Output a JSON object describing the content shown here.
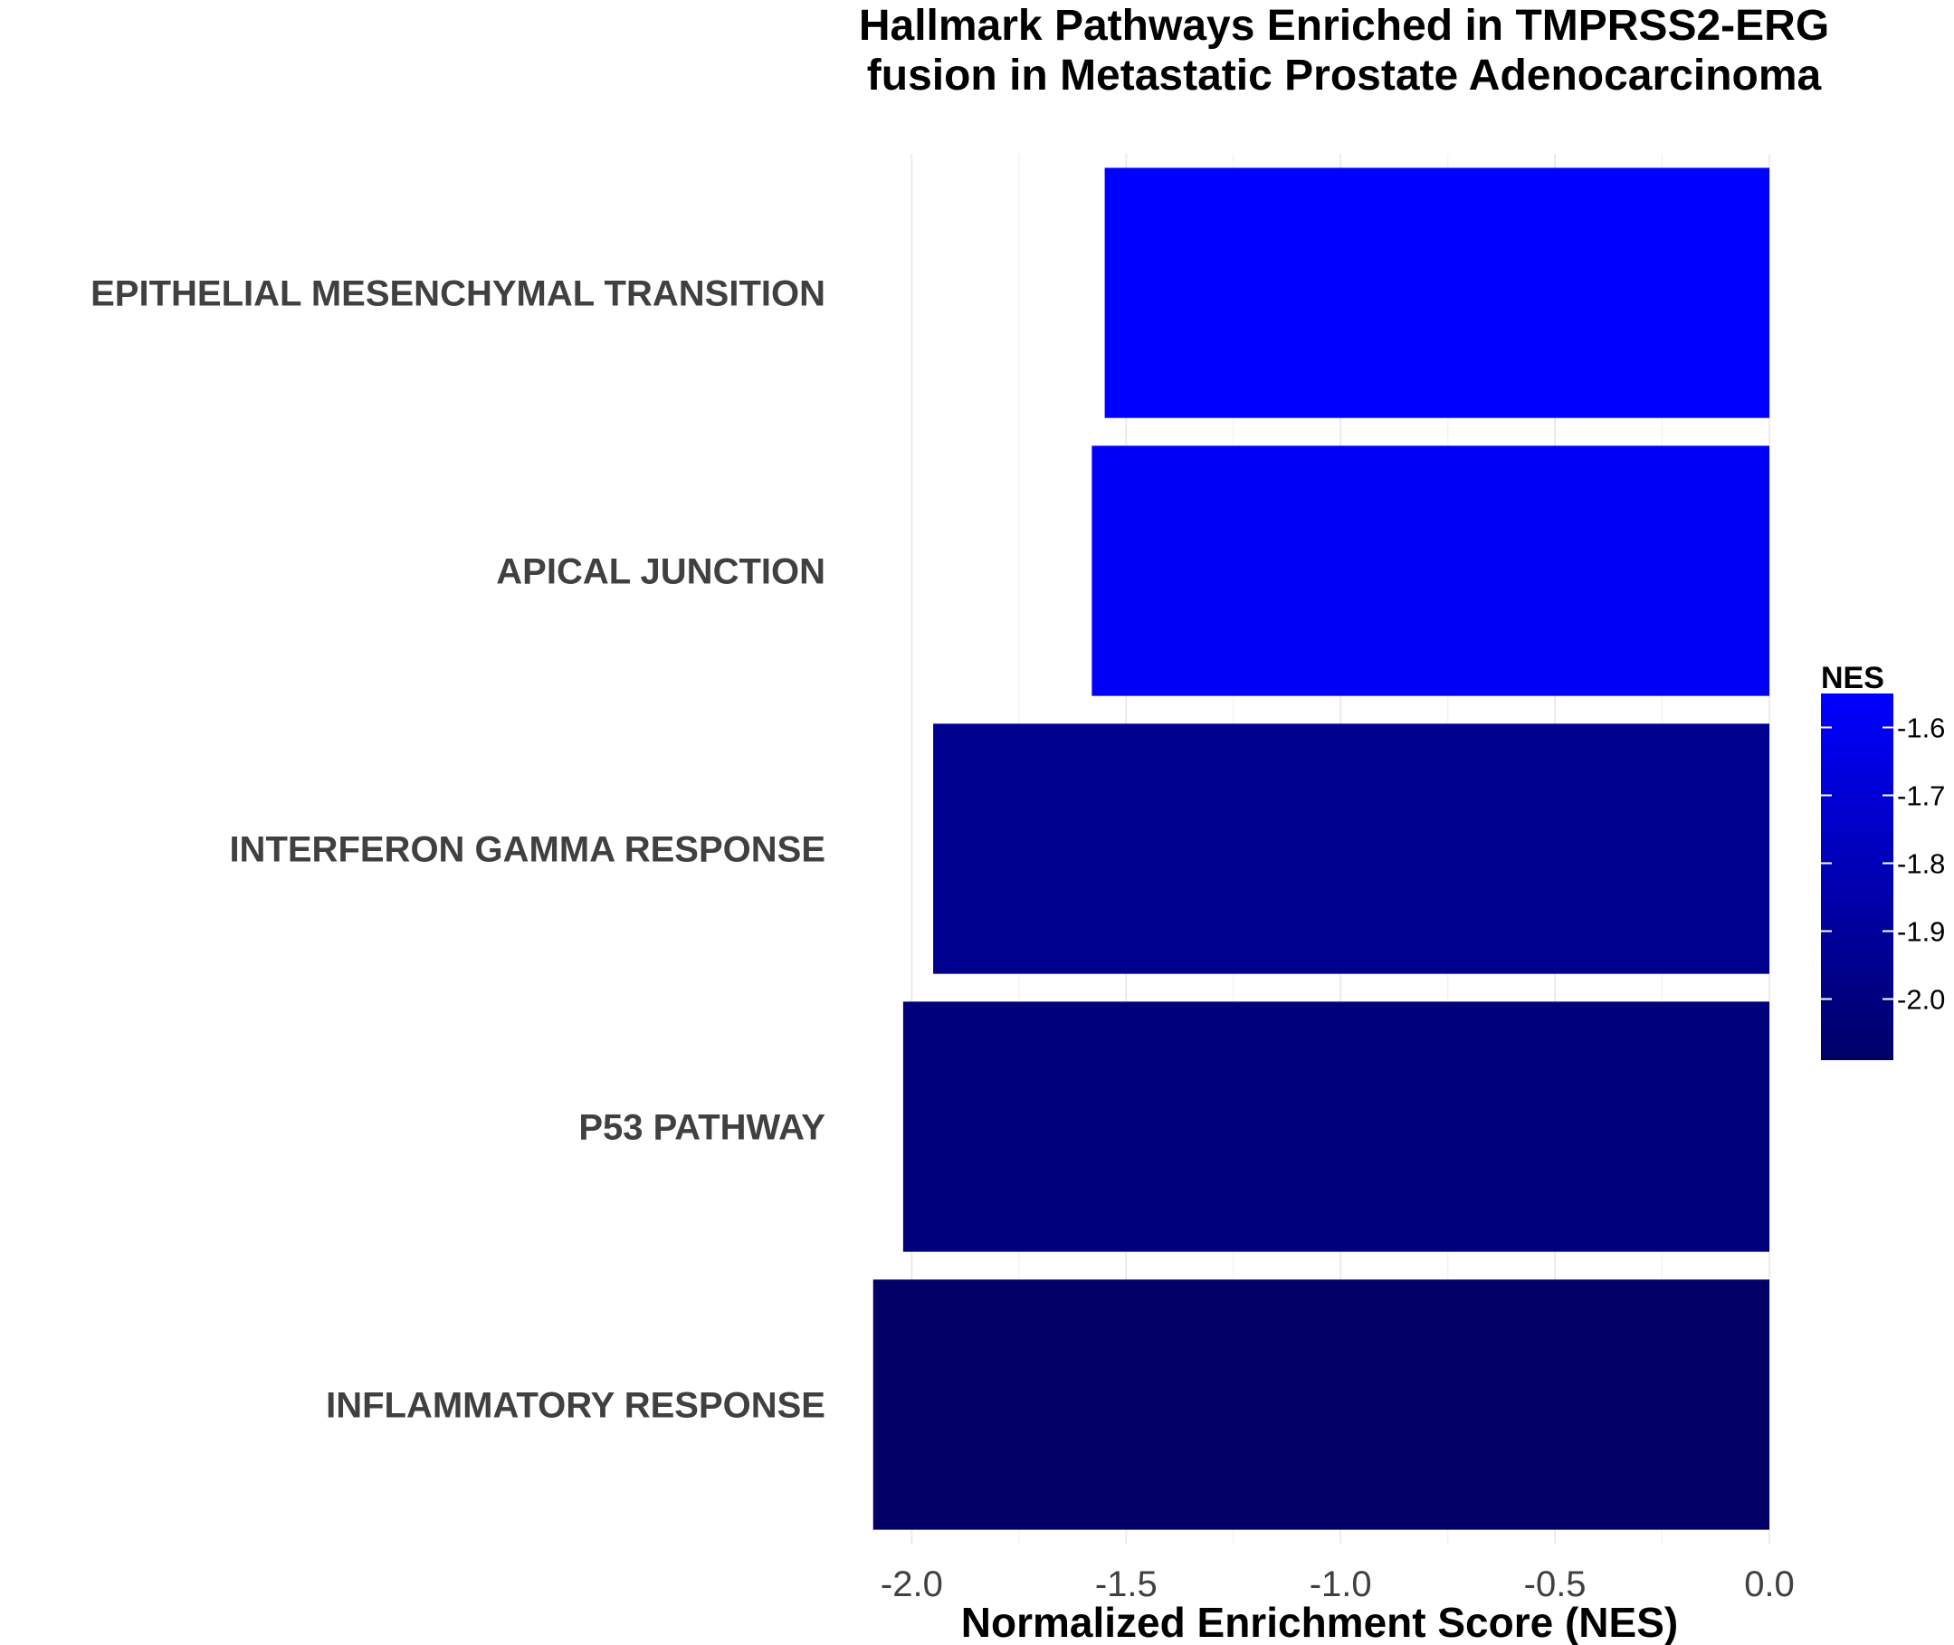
{
  "chart_data": {
    "type": "bar",
    "orientation": "horizontal",
    "title_lines": [
      "Hallmark Pathways Enriched in TMPRSS2-ERG",
      "fusion in Metastatic Prostate Adenocarcinoma"
    ],
    "xlabel": "Normalized Enrichment Score (NES)",
    "ylabel": "",
    "categories": [
      "EPITHELIAL MESENCHYMAL TRANSITION",
      "APICAL JUNCTION",
      "INTERFERON GAMMA RESPONSE",
      "P53 PATHWAY",
      "INFLAMMATORY RESPONSE"
    ],
    "values": [
      -1.55,
      -1.58,
      -1.95,
      -2.02,
      -2.09
    ],
    "xlim": [
      -2.1,
      0.0
    ],
    "x_ticks": [
      -2.0,
      -1.5,
      -1.0,
      -0.5,
      0.0
    ],
    "x_tick_labels": [
      "-2.0",
      "-1.5",
      "-1.0",
      "-0.5",
      "0.0"
    ],
    "grid": true,
    "color_scale": {
      "title": "NES",
      "low_color": "#000066",
      "high_color": "#0000ff",
      "range": [
        -2.09,
        -1.55
      ],
      "ticks": [
        -1.6,
        -1.7,
        -1.8,
        -1.9,
        -2.0
      ],
      "tick_labels": [
        "-1.6",
        "-1.7",
        "-1.8",
        "-1.9",
        "-2.0"
      ]
    },
    "legend_position": "right"
  }
}
